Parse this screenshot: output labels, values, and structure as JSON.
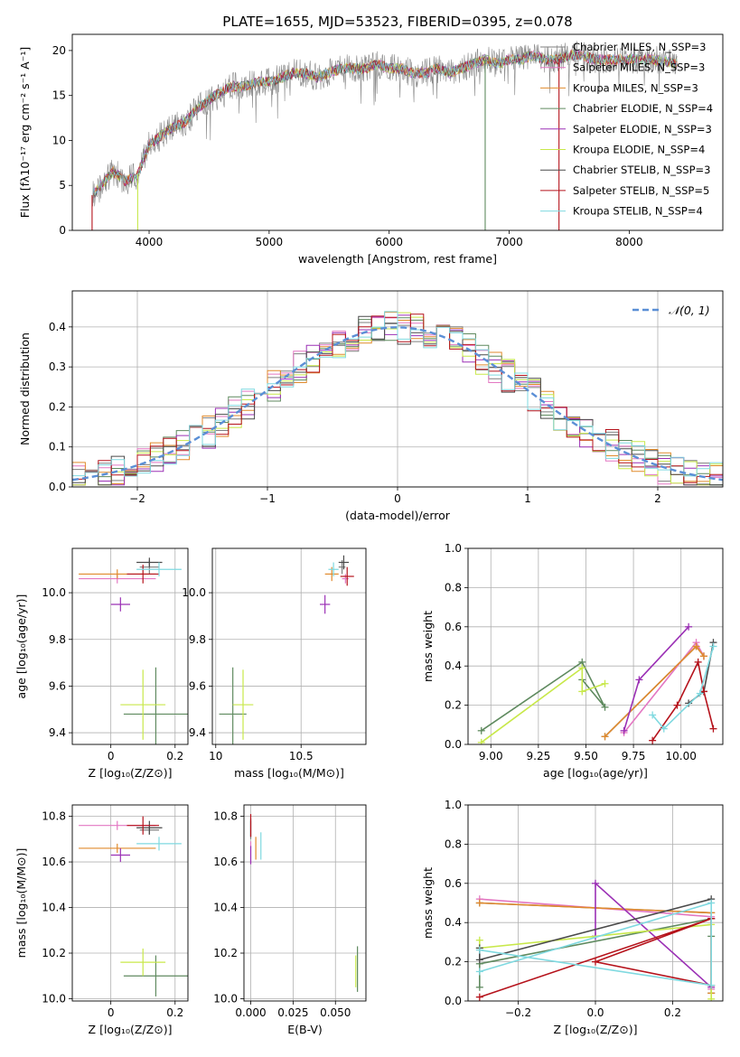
{
  "figure": {
    "title": "PLATE=1655, MJD=53523, FIBERID=0395, z=0.078"
  },
  "colors": {
    "chabrier_miles": "#7f7f7f",
    "salpeter_miles": "#e377c2",
    "kroupa_miles": "#e08a2c",
    "chabrier_elodie": "#5f8a5f",
    "salpeter_elodie": "#9b30b5",
    "kroupa_elodie": "#c8e84a",
    "chabrier_stelib": "#4a4a4a",
    "salpeter_stelib": "#b5121b",
    "kroupa_stelib": "#7fd9e0",
    "gaussian": "#5b8fd6"
  },
  "chart_data": [
    {
      "id": "spectrum",
      "type": "line",
      "title": "PLATE=1655, MJD=53523, FIBERID=0395, z=0.078",
      "xlabel": "wavelength [Angstrom, rest frame]",
      "ylabel": "Flux [fλ10⁻¹⁷ erg cm⁻² s⁻¹ A⁻¹]",
      "xlim": [
        3360,
        8780
      ],
      "ylim": [
        0,
        21.8
      ],
      "xticks": [
        4000,
        5000,
        6000,
        7000,
        8000
      ],
      "yticks": [
        0,
        5,
        10,
        15,
        20
      ],
      "grid": false,
      "legend_position": "top-right",
      "legend": [
        "Chabrier MILES, N_SSP=3",
        "Salpeter MILES, N_SSP=3",
        "Kroupa MILES, N_SSP=3",
        "Chabrier ELODIE, N_SSP=4",
        "Salpeter ELODIE, N_SSP=3",
        "Kroupa ELODIE, N_SSP=4",
        "Chabrier STELIB, N_SSP=3",
        "Salpeter STELIB, N_SSP=5",
        "Kroupa STELIB, N_SSP=4"
      ],
      "continuum": {
        "x": [
          3530,
          3600,
          3700,
          3800,
          3900,
          4000,
          4100,
          4200,
          4300,
          4400,
          4500,
          4600,
          4700,
          4800,
          4900,
          5000,
          5100,
          5200,
          5300,
          5400,
          5500,
          5600,
          5700,
          5800,
          5900,
          6000,
          6100,
          6200,
          6300,
          6400,
          6500,
          6600,
          6700,
          6800,
          6900,
          7000,
          7100,
          7200,
          7300,
          7400,
          7500,
          7600,
          7700,
          7800,
          7900,
          8000,
          8100,
          8200,
          8300,
          8400
        ],
        "y": [
          4.0,
          5.0,
          6.5,
          5.5,
          6.0,
          9.5,
          10.5,
          11.5,
          12.0,
          13.5,
          14.5,
          15.5,
          16.0,
          16.0,
          16.5,
          16.5,
          17.0,
          17.5,
          17.5,
          17.0,
          17.5,
          18.0,
          18.0,
          18.0,
          18.5,
          18.0,
          18.0,
          17.5,
          17.5,
          18.0,
          17.5,
          18.0,
          18.5,
          19.0,
          18.5,
          19.0,
          19.0,
          19.5,
          19.0,
          19.0,
          19.5,
          19.5,
          19.0,
          19.0,
          19.0,
          19.0,
          19.0,
          19.0,
          18.8,
          18.5
        ]
      }
    },
    {
      "id": "residuals",
      "type": "histogram",
      "xlabel": "(data-model)/error",
      "ylabel": "Normed distribution",
      "xlim": [
        -2.5,
        2.5
      ],
      "ylim": [
        0,
        0.49
      ],
      "xticks": [
        -2,
        -1,
        0,
        1,
        2
      ],
      "xtick_labels": [
        "−2",
        "−1",
        "0",
        "1",
        "2"
      ],
      "yticks": [
        0.0,
        0.1,
        0.2,
        0.3,
        0.4
      ],
      "grid": true,
      "legend_position": "top-right",
      "legend": [
        "𝒩(0, 1)"
      ],
      "bin_width": 0.1,
      "series": [
        {
          "color": "chabrier_miles",
          "jitter": 0.7
        },
        {
          "color": "salpeter_miles",
          "jitter": 1.3
        },
        {
          "color": "kroupa_miles",
          "jitter": 2.1
        },
        {
          "color": "chabrier_elodie",
          "jitter": 2.9
        },
        {
          "color": "salpeter_elodie",
          "jitter": 3.7
        },
        {
          "color": "kroupa_elodie",
          "jitter": 4.4
        },
        {
          "color": "chabrier_stelib",
          "jitter": 5.2
        },
        {
          "color": "salpeter_stelib",
          "jitter": 6.1
        },
        {
          "color": "kroupa_stelib",
          "jitter": 6.9
        }
      ]
    },
    {
      "id": "age_vs_z",
      "type": "scatter",
      "xlabel": "Z [log₁₀(Z/Z⊙)]",
      "ylabel": "age  [log₁₀(age/yr)]",
      "xlim": [
        -0.12,
        0.24
      ],
      "ylim": [
        9.35,
        10.19
      ],
      "xticks": [
        0.0,
        0.2
      ],
      "yticks": [
        9.4,
        9.6,
        9.8,
        10.0
      ],
      "grid": true,
      "points": [
        {
          "color": "chabrier_miles",
          "x": 0.12,
          "y": 10.11,
          "xerr": 0.03,
          "yerr": 0.03
        },
        {
          "color": "salpeter_miles",
          "x": 0.02,
          "y": 10.06,
          "xerr": 0.12,
          "yerr": 0.02
        },
        {
          "color": "kroupa_miles",
          "x": 0.02,
          "y": 10.08,
          "xerr": 0.12,
          "yerr": 0.02
        },
        {
          "color": "chabrier_elodie",
          "x": 0.14,
          "y": 9.48,
          "xerr": 0.1,
          "yerr": 0.2
        },
        {
          "color": "salpeter_elodie",
          "x": 0.03,
          "y": 9.95,
          "xerr": 0.03,
          "yerr": 0.03
        },
        {
          "color": "kroupa_elodie",
          "x": 0.1,
          "y": 9.52,
          "xerr": 0.07,
          "yerr": 0.15
        },
        {
          "color": "chabrier_stelib",
          "x": 0.12,
          "y": 10.13,
          "xerr": 0.04,
          "yerr": 0.02
        },
        {
          "color": "salpeter_stelib",
          "x": 0.1,
          "y": 10.08,
          "xerr": 0.05,
          "yerr": 0.04
        },
        {
          "color": "kroupa_stelib",
          "x": 0.15,
          "y": 10.1,
          "xerr": 0.07,
          "yerr": 0.03
        }
      ]
    },
    {
      "id": "age_vs_mass",
      "type": "scatter",
      "xlabel": "mass [log₁₀(M/M⊙)]",
      "ylabel": "",
      "xlim": [
        9.98,
        10.88
      ],
      "ylim": [
        9.35,
        10.19
      ],
      "xticks": [
        10.0,
        10.5
      ],
      "yticks": [
        9.4,
        9.6,
        9.8,
        10.0
      ],
      "grid": true,
      "points": [
        {
          "color": "chabrier_miles",
          "x": 10.74,
          "y": 10.11,
          "xerr": 0.02,
          "yerr": 0.03
        },
        {
          "color": "salpeter_miles",
          "x": 10.76,
          "y": 10.06,
          "xerr": 0.02,
          "yerr": 0.02
        },
        {
          "color": "kroupa_miles",
          "x": 10.68,
          "y": 10.08,
          "xerr": 0.04,
          "yerr": 0.03
        },
        {
          "color": "chabrier_elodie",
          "x": 10.1,
          "y": 9.48,
          "xerr": 0.08,
          "yerr": 0.2
        },
        {
          "color": "salpeter_elodie",
          "x": 10.64,
          "y": 9.95,
          "xerr": 0.03,
          "yerr": 0.04
        },
        {
          "color": "kroupa_elodie",
          "x": 10.16,
          "y": 9.52,
          "xerr": 0.06,
          "yerr": 0.15
        },
        {
          "color": "chabrier_stelib",
          "x": 10.75,
          "y": 10.13,
          "xerr": 0.03,
          "yerr": 0.03
        },
        {
          "color": "salpeter_stelib",
          "x": 10.77,
          "y": 10.07,
          "xerr": 0.04,
          "yerr": 0.04
        },
        {
          "color": "kroupa_stelib",
          "x": 10.69,
          "y": 10.1,
          "xerr": 0.03,
          "yerr": 0.03
        }
      ]
    },
    {
      "id": "weight_vs_age",
      "type": "line",
      "xlabel": "age  [log₁₀(age/yr)]",
      "ylabel": "mass weight",
      "xlim": [
        8.88,
        10.22
      ],
      "ylim": [
        0,
        1.0
      ],
      "xticks": [
        9.0,
        9.25,
        9.5,
        9.75,
        10.0
      ],
      "xtick_labels": [
        "9.00",
        "9.25",
        "9.50",
        "9.75",
        "10.00"
      ],
      "yticks": [
        0.0,
        0.2,
        0.4,
        0.6,
        0.8,
        1.0
      ],
      "grid": true,
      "series": [
        {
          "color": "chabrier_miles",
          "x": [
            9.6,
            10.08,
            10.12
          ],
          "y": [
            0.04,
            0.5,
            0.45
          ]
        },
        {
          "color": "salpeter_miles",
          "x": [
            9.7,
            10.08,
            10.12
          ],
          "y": [
            0.06,
            0.52,
            0.45
          ]
        },
        {
          "color": "kroupa_miles",
          "x": [
            9.6,
            10.08,
            10.12
          ],
          "y": [
            0.04,
            0.5,
            0.45
          ]
        },
        {
          "color": "chabrier_elodie",
          "x": [
            8.95,
            9.48,
            9.6,
            9.48
          ],
          "y": [
            0.07,
            0.42,
            0.19,
            0.33
          ]
        },
        {
          "color": "salpeter_elodie",
          "x": [
            9.7,
            9.78,
            10.04
          ],
          "y": [
            0.07,
            0.33,
            0.6
          ]
        },
        {
          "color": "kroupa_elodie",
          "x": [
            8.95,
            9.48,
            9.48,
            9.6
          ],
          "y": [
            0.01,
            0.39,
            0.27,
            0.31
          ]
        },
        {
          "color": "chabrier_stelib",
          "x": [
            10.04,
            10.12,
            10.17
          ],
          "y": [
            0.21,
            0.27,
            0.52
          ]
        },
        {
          "color": "salpeter_stelib",
          "x": [
            9.85,
            9.98,
            10.09,
            10.12,
            10.17
          ],
          "y": [
            0.02,
            0.2,
            0.42,
            0.27,
            0.08
          ]
        },
        {
          "color": "kroupa_stelib",
          "x": [
            9.85,
            9.91,
            10.1,
            10.17
          ],
          "y": [
            0.15,
            0.08,
            0.26,
            0.5
          ]
        }
      ]
    },
    {
      "id": "mass_vs_z",
      "type": "scatter",
      "xlabel": "Z [log₁₀(Z/Z⊙)]",
      "ylabel": "mass [log₁₀(M/M⊙)]",
      "xlim": [
        -0.12,
        0.24
      ],
      "ylim": [
        9.99,
        10.85
      ],
      "xticks": [
        0.0,
        0.2
      ],
      "yticks": [
        10.0,
        10.2,
        10.4,
        10.6,
        10.8
      ],
      "grid": true,
      "points": [
        {
          "color": "chabrier_miles",
          "x": 0.12,
          "y": 10.74,
          "xerr": 0.03,
          "yerr": 0.02
        },
        {
          "color": "salpeter_miles",
          "x": 0.02,
          "y": 10.76,
          "xerr": 0.12,
          "yerr": 0.02
        },
        {
          "color": "kroupa_miles",
          "x": 0.02,
          "y": 10.66,
          "xerr": 0.12,
          "yerr": 0.02
        },
        {
          "color": "chabrier_elodie",
          "x": 0.14,
          "y": 10.1,
          "xerr": 0.1,
          "yerr": 0.09
        },
        {
          "color": "salpeter_elodie",
          "x": 0.03,
          "y": 10.63,
          "xerr": 0.03,
          "yerr": 0.03
        },
        {
          "color": "kroupa_elodie",
          "x": 0.1,
          "y": 10.16,
          "xerr": 0.07,
          "yerr": 0.06
        },
        {
          "color": "chabrier_stelib",
          "x": 0.12,
          "y": 10.75,
          "xerr": 0.04,
          "yerr": 0.03
        },
        {
          "color": "salpeter_stelib",
          "x": 0.1,
          "y": 10.76,
          "xerr": 0.05,
          "yerr": 0.04
        },
        {
          "color": "kroupa_stelib",
          "x": 0.15,
          "y": 10.68,
          "xerr": 0.07,
          "yerr": 0.03
        }
      ]
    },
    {
      "id": "mass_vs_ebv",
      "type": "scatter",
      "xlabel": "E(B-V)",
      "ylabel": "",
      "xlim": [
        -0.004,
        0.068
      ],
      "ylim": [
        9.99,
        10.85
      ],
      "xticks": [
        0.0,
        0.025,
        0.05
      ],
      "xtick_labels": [
        "0.000",
        "0.025",
        "0.050"
      ],
      "yticks": [
        10.0,
        10.2,
        10.4,
        10.6,
        10.8
      ],
      "grid": true,
      "points": [
        {
          "color": "chabrier_miles",
          "x": 0.0,
          "y": 10.74,
          "xerr": 0.0,
          "yerr": 0.04
        },
        {
          "color": "salpeter_miles",
          "x": 0.0,
          "y": 10.64,
          "xerr": 0.0,
          "yerr": 0.05
        },
        {
          "color": "kroupa_miles",
          "x": 0.003,
          "y": 10.66,
          "xerr": 0.0,
          "yerr": 0.05
        },
        {
          "color": "chabrier_elodie",
          "x": 0.063,
          "y": 10.13,
          "xerr": 0.0,
          "yerr": 0.1
        },
        {
          "color": "salpeter_elodie",
          "x": 0.0,
          "y": 10.63,
          "xerr": 0.0,
          "yerr": 0.04
        },
        {
          "color": "kroupa_elodie",
          "x": 0.062,
          "y": 10.12,
          "xerr": 0.0,
          "yerr": 0.07
        },
        {
          "color": "chabrier_stelib",
          "x": 0.0,
          "y": 10.75,
          "xerr": 0.0,
          "yerr": 0.04
        },
        {
          "color": "salpeter_stelib",
          "x": 0.0,
          "y": 10.76,
          "xerr": 0.0,
          "yerr": 0.05
        },
        {
          "color": "kroupa_stelib",
          "x": 0.006,
          "y": 10.67,
          "xerr": 0.0,
          "yerr": 0.06
        }
      ]
    },
    {
      "id": "weight_vs_z",
      "type": "line",
      "xlabel": "Z [log₁₀(Z/Z⊙)]",
      "ylabel": "mass weight",
      "xlim": [
        -0.33,
        0.33
      ],
      "ylim": [
        0,
        1.0
      ],
      "xticks": [
        -0.2,
        0.0,
        0.2
      ],
      "xtick_labels": [
        "−0.2",
        "0.0",
        "0.2"
      ],
      "yticks": [
        0.0,
        0.2,
        0.4,
        0.6,
        0.8,
        1.0
      ],
      "grid": true,
      "series": [
        {
          "color": "chabrier_miles",
          "x": [
            -0.3,
            0.3,
            0.3
          ],
          "y": [
            0.5,
            0.45,
            0.04
          ]
        },
        {
          "color": "salpeter_miles",
          "x": [
            -0.3,
            0.3,
            0.3
          ],
          "y": [
            0.52,
            0.43,
            0.06
          ]
        },
        {
          "color": "kroupa_miles",
          "x": [
            -0.3,
            0.3,
            0.3
          ],
          "y": [
            0.5,
            0.45,
            0.04
          ]
        },
        {
          "color": "chabrier_elodie",
          "x": [
            -0.3,
            -0.3,
            0.3,
            0.3
          ],
          "y": [
            0.07,
            0.19,
            0.42,
            0.33
          ]
        },
        {
          "color": "salpeter_elodie",
          "x": [
            0.3,
            0.0,
            0.0,
            0.0
          ],
          "y": [
            0.07,
            0.6,
            0.33,
            0.33
          ]
        },
        {
          "color": "kroupa_elodie",
          "x": [
            0.3,
            0.3,
            -0.3,
            -0.3
          ],
          "y": [
            0.01,
            0.39,
            0.27,
            0.31
          ]
        },
        {
          "color": "chabrier_stelib",
          "x": [
            -0.3,
            -0.3,
            0.3
          ],
          "y": [
            0.27,
            0.21,
            0.52
          ]
        },
        {
          "color": "salpeter_stelib",
          "x": [
            -0.3,
            0.3,
            0.3,
            0.0,
            0.3
          ],
          "y": [
            0.02,
            0.42,
            0.08,
            0.2,
            0.42
          ]
        },
        {
          "color": "kroupa_stelib",
          "x": [
            -0.3,
            0.3,
            0.3,
            -0.3
          ],
          "y": [
            0.15,
            0.5,
            0.08,
            0.26
          ]
        }
      ]
    }
  ]
}
